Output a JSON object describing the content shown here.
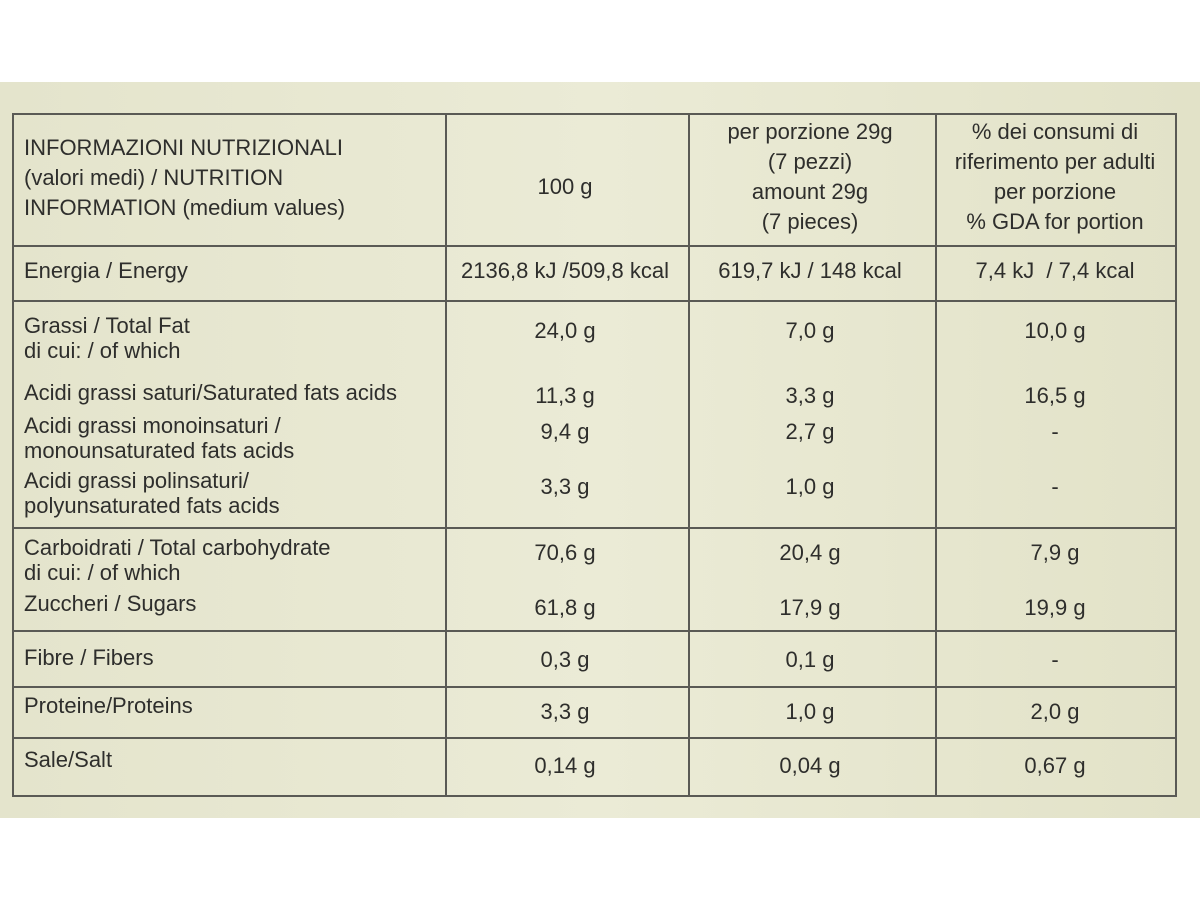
{
  "table": {
    "header": [
      [
        "INFORMAZIONI NUTRIZIONALI",
        "(valori medi) / NUTRITION",
        "INFORMATION (medium values)"
      ],
      [
        "100 g"
      ],
      [
        "per porzione 29g",
        "(7 pezzi)",
        "amount 29g",
        "(7 pieces)"
      ],
      [
        "% dei consumi di",
        "riferimento per adulti",
        "per porzione",
        "% GDA for portion"
      ]
    ],
    "groups": [
      {
        "items": [
          {
            "label": [
              "Energia / Energy"
            ],
            "values": [
              "2136,8 kJ /509,8 kcal",
              "619,7 kJ / 148 kcal",
              "7,4 kJ  / 7,4 kcal"
            ]
          }
        ]
      },
      {
        "items": [
          {
            "label": [
              "Grassi / Total Fat",
              "di cui: / of which"
            ],
            "values": [
              "24,0 g",
              "7,0 g",
              "10,0 g"
            ]
          },
          {
            "label": [
              "Acidi grassi saturi/Saturated fats acids"
            ],
            "values": [
              "11,3 g",
              "3,3 g",
              "16,5 g"
            ]
          },
          {
            "label": [
              "Acidi grassi monoinsaturi /",
              "monounsaturated fats acids"
            ],
            "values": [
              "9,4 g",
              "2,7 g",
              "-"
            ]
          },
          {
            "label": [
              "Acidi grassi polinsaturi/",
              "polyunsaturated fats acids"
            ],
            "values": [
              "3,3 g",
              "1,0 g",
              "-"
            ]
          }
        ]
      },
      {
        "items": [
          {
            "label": [
              "Carboidrati / Total carbohydrate",
              "di cui: / of which"
            ],
            "values": [
              "70,6 g",
              "20,4 g",
              "7,9 g"
            ]
          },
          {
            "label": [
              "Zuccheri / Sugars"
            ],
            "values": [
              "61,8 g",
              "17,9 g",
              "19,9 g"
            ]
          }
        ]
      },
      {
        "items": [
          {
            "label": [
              "Fibre / Fibers"
            ],
            "values": [
              "0,3 g",
              "0,1 g",
              "-"
            ]
          }
        ]
      },
      {
        "items": [
          {
            "label": [
              "Proteine/Proteins"
            ],
            "values": [
              "3,3 g",
              "1,0 g",
              "2,0 g"
            ]
          }
        ]
      },
      {
        "items": [
          {
            "label": [
              "Sale/Salt"
            ],
            "values": [
              "0,14 g",
              "0,04 g",
              "0,67 g"
            ]
          }
        ]
      }
    ]
  }
}
